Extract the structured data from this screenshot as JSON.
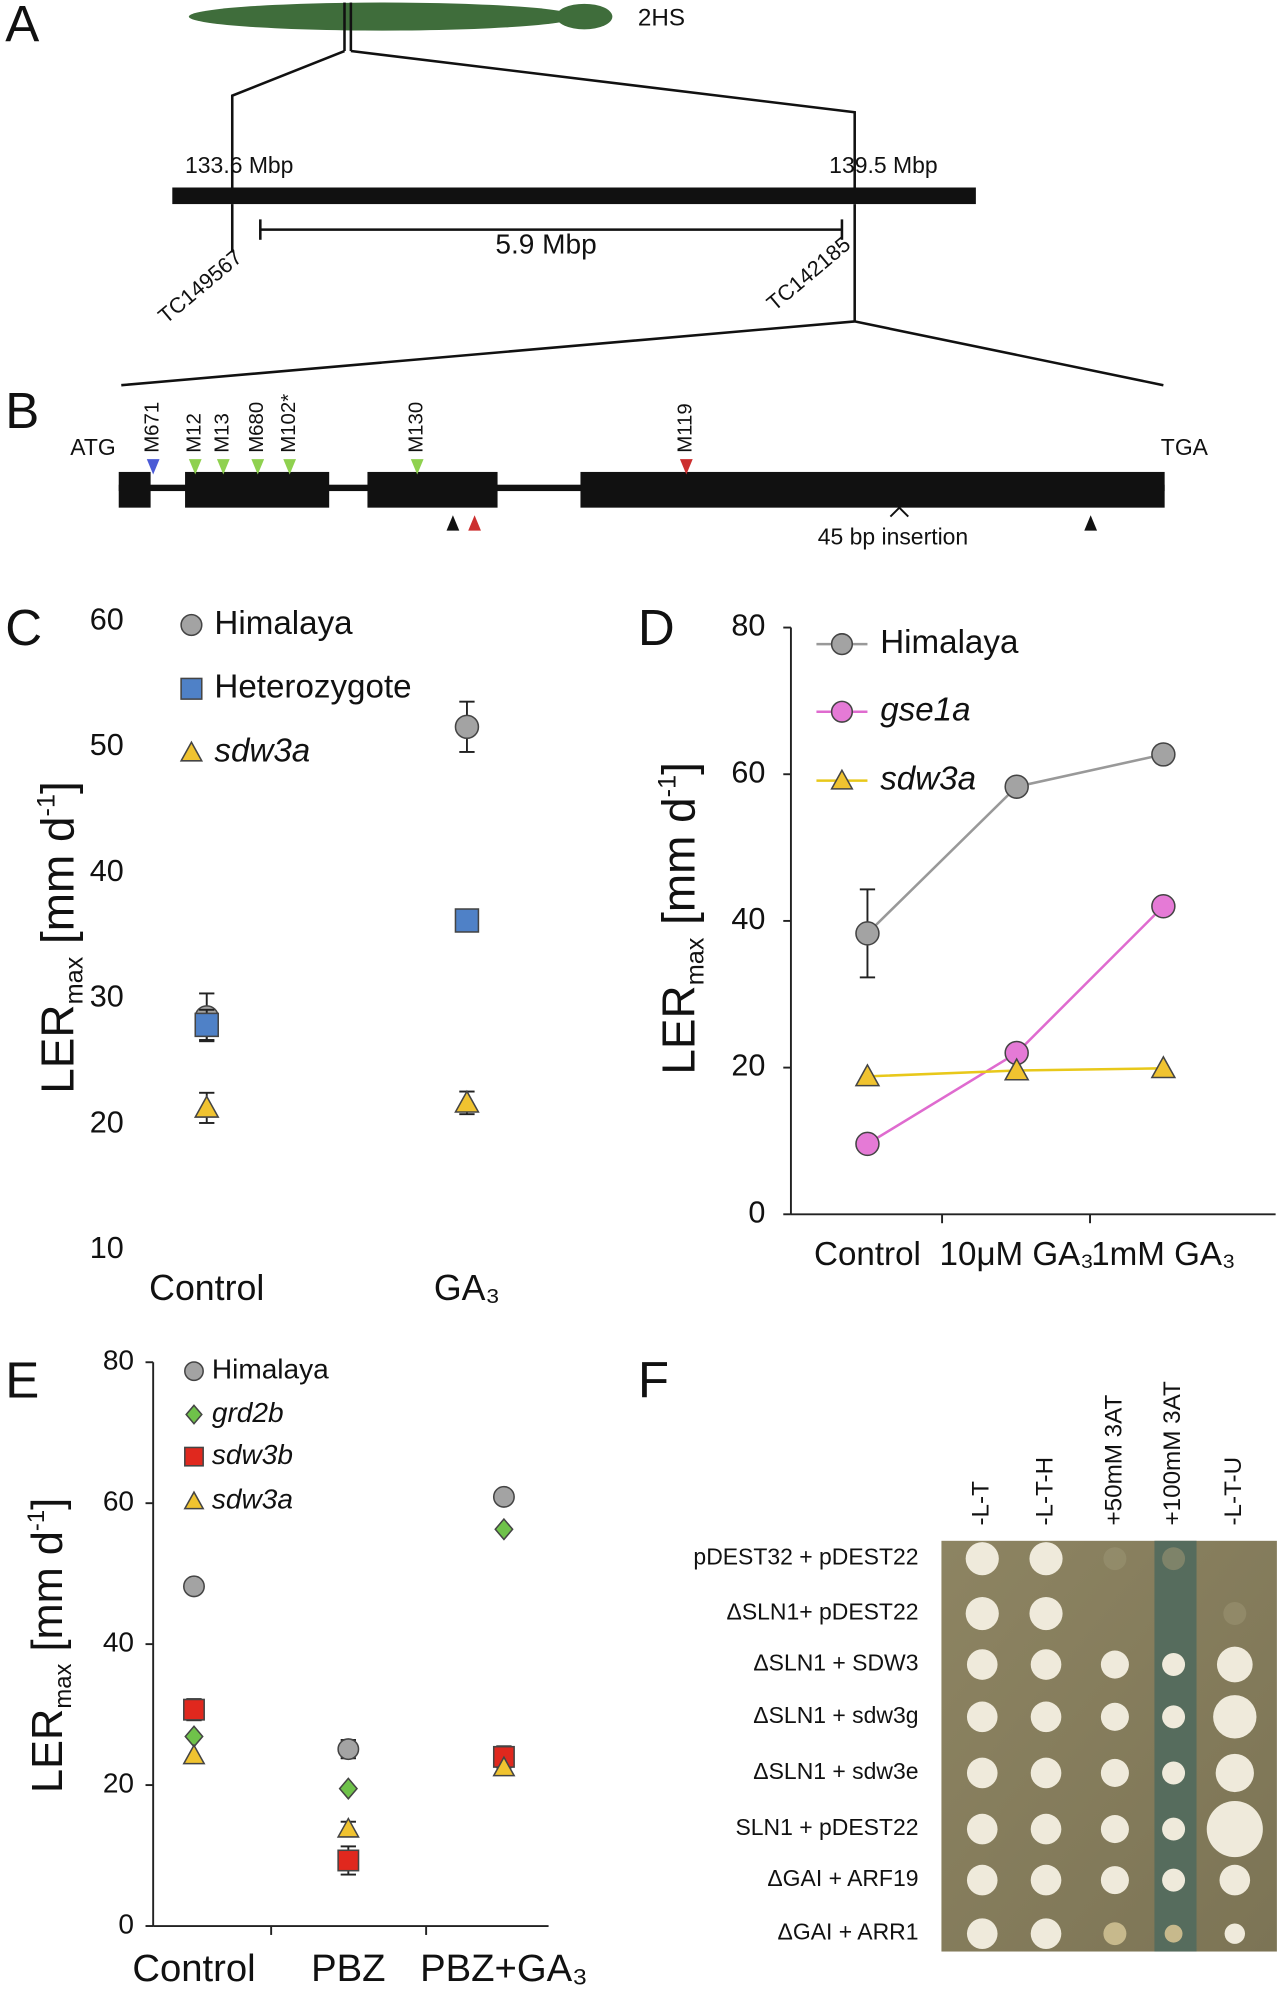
{
  "figure": {
    "panel_labels": [
      "A",
      "B",
      "C",
      "D",
      "E",
      "F"
    ]
  },
  "panel_a": {
    "chromosome": "2HS",
    "left_pos": "133.6 Mbp",
    "right_pos": "139.5 Mbp",
    "interval": "5.9 Mbp",
    "left_marker": "TC149567",
    "right_marker": "TC142185"
  },
  "panel_b": {
    "start": "ATG",
    "stop": "TGA",
    "mutations": [
      "M671",
      "M12",
      "M13",
      "M680",
      "M102*",
      "M130",
      "M119"
    ],
    "insertion": "45 bp insertion"
  },
  "chart_data": [
    {
      "type": "scatter",
      "categories": [
        "Control",
        "GA₃"
      ],
      "ylabel": [
        "LER",
        "max",
        " [mm d",
        "-1",
        "]"
      ],
      "ylim": [
        10,
        60
      ],
      "yticks": [
        10,
        20,
        30,
        40,
        50,
        60
      ],
      "series": [
        {
          "name": "Himalaya",
          "color": "#a3a3a3",
          "marker": "circle",
          "values": [
            28.5,
            51.6
          ],
          "errors": [
            1.9,
            2.0
          ]
        },
        {
          "name": "Heterozygote",
          "color": "#4f81c7",
          "marker": "square",
          "values": [
            27.9,
            36.2
          ],
          "errors": [
            1.2,
            null
          ]
        },
        {
          "name": "sdw3a",
          "italic": true,
          "color": "#f0c330",
          "marker": "triangle",
          "values": [
            21.3,
            21.7
          ],
          "errors": [
            1.2,
            0.9
          ]
        }
      ]
    },
    {
      "type": "line",
      "categories": [
        "Control",
        "10μM GA₃",
        "1mM GA₃"
      ],
      "ylabel": [
        "LER",
        "max",
        " [mm d",
        "-1",
        "]"
      ],
      "ylim": [
        0,
        80
      ],
      "yticks": [
        0,
        20,
        40,
        60,
        80
      ],
      "series": [
        {
          "name": "Himalaya",
          "color": "#a3a3a3",
          "line_color": "#999999",
          "marker": "circle",
          "values": [
            38.3,
            58.3,
            62.7
          ],
          "errors": [
            6.0,
            1.0,
            1.2
          ]
        },
        {
          "name": "gse1a",
          "italic": true,
          "color": "#e57ad6",
          "line_color": "#df6bcf",
          "marker": "circle",
          "values": [
            9.6,
            22.0,
            42.0
          ],
          "errors": [
            null,
            null,
            0.6
          ]
        },
        {
          "name": "sdw3a",
          "italic": true,
          "color": "#f0c330",
          "line_color": "#e8c81a",
          "marker": "triangle",
          "values": [
            18.8,
            19.6,
            19.9
          ],
          "errors": [
            null,
            null,
            null
          ]
        }
      ]
    },
    {
      "type": "scatter",
      "categories": [
        "Control",
        "PBZ",
        "PBZ+GA₃"
      ],
      "ylabel": [
        "LER",
        "max",
        " [mm d",
        "-1",
        "]"
      ],
      "ylim": [
        0,
        80
      ],
      "yticks": [
        0,
        20,
        40,
        60,
        80
      ],
      "series": [
        {
          "name": "Himalaya",
          "color": "#a3a3a3",
          "marker": "circle",
          "values": [
            48.2,
            25.1,
            60.9
          ],
          "errors": [
            null,
            1.3,
            null
          ]
        },
        {
          "name": "grd2b",
          "italic": true,
          "color": "#6fc24a",
          "marker": "diamond",
          "values": [
            26.9,
            19.5,
            56.3
          ],
          "errors": [
            null,
            null,
            null
          ]
        },
        {
          "name": "sdw3b",
          "italic": true,
          "color": "#e0281e",
          "marker": "square",
          "values": [
            30.7,
            9.3,
            24.0
          ],
          "errors": [
            1.5,
            2.0,
            1.5
          ]
        },
        {
          "name": "sdw3a",
          "italic": true,
          "color": "#f0c330",
          "marker": "triangle",
          "values": [
            24.2,
            13.8,
            22.5
          ],
          "errors": [
            null,
            1.0,
            null
          ]
        }
      ]
    }
  ],
  "panel_f": {
    "columns": [
      "-L-T",
      "-L-T-H",
      "+50mM 3AT",
      "+100mM 3AT",
      "-L-T-U"
    ],
    "rows": [
      "pDEST32 + pDEST22",
      "ΔSLN1+ pDEST22",
      "ΔSLN1 + SDW3",
      "ΔSLN1 + sdw3g",
      "ΔSLN1 + sdw3e",
      "SLN1 + pDEST22",
      "ΔGAI + ARF19",
      "ΔGAI + ARR1"
    ]
  }
}
